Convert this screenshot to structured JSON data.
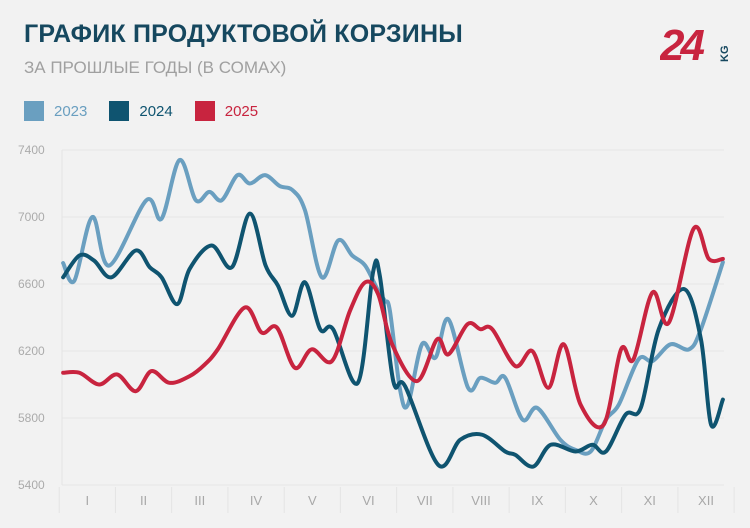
{
  "header": {
    "title": "ГРАФИК ПРОДУКТОВОЙ КОРЗИНЫ",
    "subtitle": "ЗА ПРОШЛЫЕ ГОДЫ (В СОМАХ)"
  },
  "logo": {
    "text": "24",
    "suffix": "KG",
    "color": "#c8243f",
    "suffix_color": "#16485f"
  },
  "chart_data": {
    "type": "line",
    "title": "ГРАФИК ПРОДУКТОВОЙ КОРЗИНЫ",
    "subtitle": "ЗА ПРОШЛЫЕ ГОДЫ (В СОМАХ)",
    "xlabel": "",
    "ylabel": "",
    "x_tick_labels": [
      "I",
      "II",
      "III",
      "IV",
      "V",
      "VI",
      "VII",
      "VIII",
      "IX",
      "X",
      "XI",
      "XII"
    ],
    "xlim": [
      0.55,
      12.32
    ],
    "ylim": [
      5400,
      7400
    ],
    "y_ticks": [
      5400,
      5800,
      6200,
      6600,
      7000,
      7400
    ],
    "grid": true,
    "legend": "top-left",
    "smooth": true,
    "series": [
      {
        "name": "2023",
        "color": "#6a9fc0",
        "points": [
          [
            0.57,
            6725
          ],
          [
            0.77,
            6620
          ],
          [
            1.09,
            7000
          ],
          [
            1.39,
            6710
          ],
          [
            2.05,
            7100
          ],
          [
            2.32,
            6990
          ],
          [
            2.64,
            7340
          ],
          [
            2.93,
            7100
          ],
          [
            3.17,
            7150
          ],
          [
            3.39,
            7100
          ],
          [
            3.67,
            7250
          ],
          [
            3.89,
            7200
          ],
          [
            4.16,
            7250
          ],
          [
            4.42,
            7185
          ],
          [
            4.65,
            7160
          ],
          [
            4.87,
            7040
          ],
          [
            5.17,
            6640
          ],
          [
            5.46,
            6860
          ],
          [
            5.71,
            6770
          ],
          [
            5.94,
            6710
          ],
          [
            6.17,
            6560
          ],
          [
            6.29,
            6500
          ],
          [
            6.38,
            6440
          ],
          [
            6.56,
            5970
          ],
          [
            6.7,
            5880
          ],
          [
            6.95,
            6240
          ],
          [
            7.19,
            6160
          ],
          [
            7.42,
            6390
          ],
          [
            7.77,
            5980
          ],
          [
            7.99,
            6040
          ],
          [
            8.25,
            6010
          ],
          [
            8.43,
            6040
          ],
          [
            8.74,
            5790
          ],
          [
            9.0,
            5860
          ],
          [
            9.41,
            5670
          ],
          [
            9.68,
            5610
          ],
          [
            9.95,
            5600
          ],
          [
            10.22,
            5790
          ],
          [
            10.45,
            5880
          ],
          [
            10.8,
            6150
          ],
          [
            11.05,
            6140
          ],
          [
            11.37,
            6240
          ],
          [
            11.7,
            6210
          ],
          [
            11.91,
            6330
          ],
          [
            12.3,
            6730
          ]
        ]
      },
      {
        "name": "2024",
        "color": "#0f5470",
        "points": [
          [
            0.57,
            6640
          ],
          [
            0.86,
            6770
          ],
          [
            1.12,
            6740
          ],
          [
            1.43,
            6640
          ],
          [
            1.86,
            6800
          ],
          [
            2.11,
            6700
          ],
          [
            2.32,
            6640
          ],
          [
            2.6,
            6480
          ],
          [
            2.82,
            6690
          ],
          [
            3.21,
            6830
          ],
          [
            3.57,
            6700
          ],
          [
            3.89,
            7020
          ],
          [
            4.17,
            6710
          ],
          [
            4.39,
            6590
          ],
          [
            4.64,
            6410
          ],
          [
            4.87,
            6610
          ],
          [
            5.14,
            6330
          ],
          [
            5.37,
            6330
          ],
          [
            5.81,
            6010
          ],
          [
            6.08,
            6670
          ],
          [
            6.2,
            6650
          ],
          [
            6.44,
            6020
          ],
          [
            6.65,
            5990
          ],
          [
            7.24,
            5520
          ],
          [
            7.63,
            5670
          ],
          [
            8.02,
            5700
          ],
          [
            8.43,
            5600
          ],
          [
            8.61,
            5580
          ],
          [
            8.93,
            5510
          ],
          [
            9.24,
            5640
          ],
          [
            9.68,
            5600
          ],
          [
            9.98,
            5640
          ],
          [
            10.22,
            5600
          ],
          [
            10.57,
            5820
          ],
          [
            10.84,
            5860
          ],
          [
            11.16,
            6330
          ],
          [
            11.61,
            6570
          ],
          [
            11.91,
            6270
          ],
          [
            12.09,
            5760
          ],
          [
            12.3,
            5910
          ]
        ]
      },
      {
        "name": "2025",
        "color": "#c8243f",
        "points": [
          [
            0.57,
            6070
          ],
          [
            0.86,
            6070
          ],
          [
            1.21,
            6000
          ],
          [
            1.53,
            6060
          ],
          [
            1.86,
            5960
          ],
          [
            2.14,
            6080
          ],
          [
            2.46,
            6010
          ],
          [
            2.82,
            6050
          ],
          [
            3.09,
            6120
          ],
          [
            3.32,
            6210
          ],
          [
            3.8,
            6460
          ],
          [
            4.1,
            6310
          ],
          [
            4.37,
            6340
          ],
          [
            4.69,
            6100
          ],
          [
            4.99,
            6210
          ],
          [
            5.35,
            6140
          ],
          [
            5.67,
            6440
          ],
          [
            5.94,
            6610
          ],
          [
            6.17,
            6540
          ],
          [
            6.42,
            6240
          ],
          [
            6.86,
            6020
          ],
          [
            7.22,
            6270
          ],
          [
            7.42,
            6180
          ],
          [
            7.76,
            6360
          ],
          [
            7.99,
            6330
          ],
          [
            8.2,
            6330
          ],
          [
            8.61,
            6110
          ],
          [
            8.91,
            6200
          ],
          [
            9.2,
            5980
          ],
          [
            9.47,
            6240
          ],
          [
            9.77,
            5880
          ],
          [
            10.18,
            5760
          ],
          [
            10.49,
            6210
          ],
          [
            10.71,
            6150
          ],
          [
            11.05,
            6550
          ],
          [
            11.34,
            6370
          ],
          [
            11.78,
            6930
          ],
          [
            12.05,
            6750
          ],
          [
            12.3,
            6750
          ]
        ]
      }
    ]
  }
}
